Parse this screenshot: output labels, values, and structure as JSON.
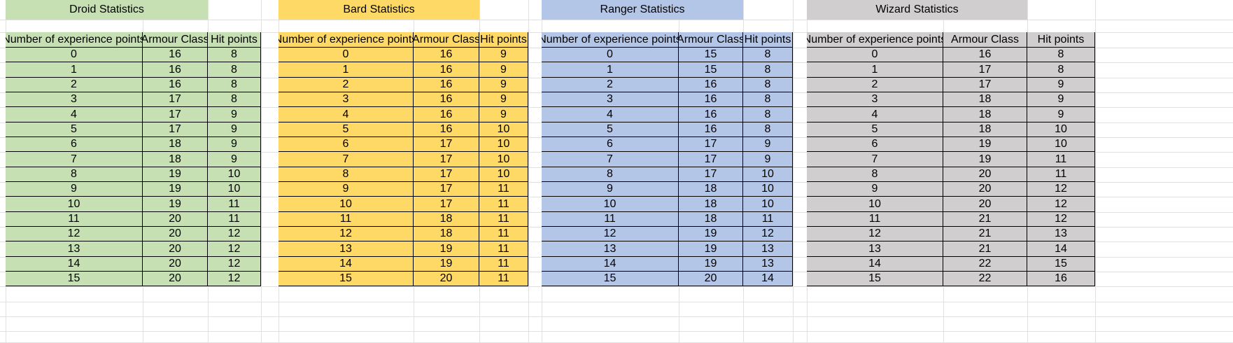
{
  "colors": {
    "droid": "#c6e0b4",
    "bard": "#ffd966",
    "ranger": "#b4c6e7",
    "wizard": "#d0cece",
    "gridline": "#e1e1e1",
    "border": "#000000"
  },
  "tables": [
    {
      "id": "droid",
      "title": "Droid Statistics",
      "headers": [
        "Number of experience points",
        "Armour Class",
        "Hit points"
      ],
      "rows": [
        [
          "0",
          "16",
          "8"
        ],
        [
          "1",
          "16",
          "8"
        ],
        [
          "2",
          "16",
          "8"
        ],
        [
          "3",
          "17",
          "8"
        ],
        [
          "4",
          "17",
          "9"
        ],
        [
          "5",
          "17",
          "9"
        ],
        [
          "6",
          "18",
          "9"
        ],
        [
          "7",
          "18",
          "9"
        ],
        [
          "8",
          "19",
          "10"
        ],
        [
          "9",
          "19",
          "10"
        ],
        [
          "10",
          "19",
          "11"
        ],
        [
          "11",
          "20",
          "11"
        ],
        [
          "12",
          "20",
          "12"
        ],
        [
          "13",
          "20",
          "12"
        ],
        [
          "14",
          "20",
          "12"
        ],
        [
          "15",
          "20",
          "12"
        ]
      ]
    },
    {
      "id": "bard",
      "title": "Bard Statistics",
      "headers": [
        "Number of experience points",
        "Armour Class",
        "Hit points"
      ],
      "rows": [
        [
          "0",
          "16",
          "9"
        ],
        [
          "1",
          "16",
          "9"
        ],
        [
          "2",
          "16",
          "9"
        ],
        [
          "3",
          "16",
          "9"
        ],
        [
          "4",
          "16",
          "9"
        ],
        [
          "5",
          "16",
          "10"
        ],
        [
          "6",
          "17",
          "10"
        ],
        [
          "7",
          "17",
          "10"
        ],
        [
          "8",
          "17",
          "10"
        ],
        [
          "9",
          "17",
          "11"
        ],
        [
          "10",
          "17",
          "11"
        ],
        [
          "11",
          "18",
          "11"
        ],
        [
          "12",
          "18",
          "11"
        ],
        [
          "13",
          "19",
          "11"
        ],
        [
          "14",
          "19",
          "11"
        ],
        [
          "15",
          "20",
          "11"
        ]
      ]
    },
    {
      "id": "ranger",
      "title": "Ranger Statistics",
      "headers": [
        "Number of experience points",
        "Armour Class",
        "Hit points"
      ],
      "rows": [
        [
          "0",
          "15",
          "8"
        ],
        [
          "1",
          "15",
          "8"
        ],
        [
          "2",
          "16",
          "8"
        ],
        [
          "3",
          "16",
          "8"
        ],
        [
          "4",
          "16",
          "8"
        ],
        [
          "5",
          "16",
          "8"
        ],
        [
          "6",
          "17",
          "9"
        ],
        [
          "7",
          "17",
          "9"
        ],
        [
          "8",
          "17",
          "10"
        ],
        [
          "9",
          "18",
          "10"
        ],
        [
          "10",
          "18",
          "10"
        ],
        [
          "11",
          "18",
          "11"
        ],
        [
          "12",
          "19",
          "12"
        ],
        [
          "13",
          "19",
          "13"
        ],
        [
          "14",
          "19",
          "13"
        ],
        [
          "15",
          "20",
          "14"
        ]
      ]
    },
    {
      "id": "wizard",
      "title": "Wizard Statistics",
      "headers": [
        "Number of experience points",
        "Armour Class",
        "Hit points"
      ],
      "rows": [
        [
          "0",
          "16",
          "8"
        ],
        [
          "1",
          "17",
          "8"
        ],
        [
          "2",
          "17",
          "9"
        ],
        [
          "3",
          "18",
          "9"
        ],
        [
          "4",
          "18",
          "9"
        ],
        [
          "5",
          "18",
          "10"
        ],
        [
          "6",
          "19",
          "10"
        ],
        [
          "7",
          "19",
          "11"
        ],
        [
          "8",
          "20",
          "11"
        ],
        [
          "9",
          "20",
          "12"
        ],
        [
          "10",
          "20",
          "12"
        ],
        [
          "11",
          "21",
          "12"
        ],
        [
          "12",
          "21",
          "13"
        ],
        [
          "13",
          "21",
          "14"
        ],
        [
          "14",
          "22",
          "15"
        ],
        [
          "15",
          "22",
          "16"
        ]
      ]
    }
  ]
}
